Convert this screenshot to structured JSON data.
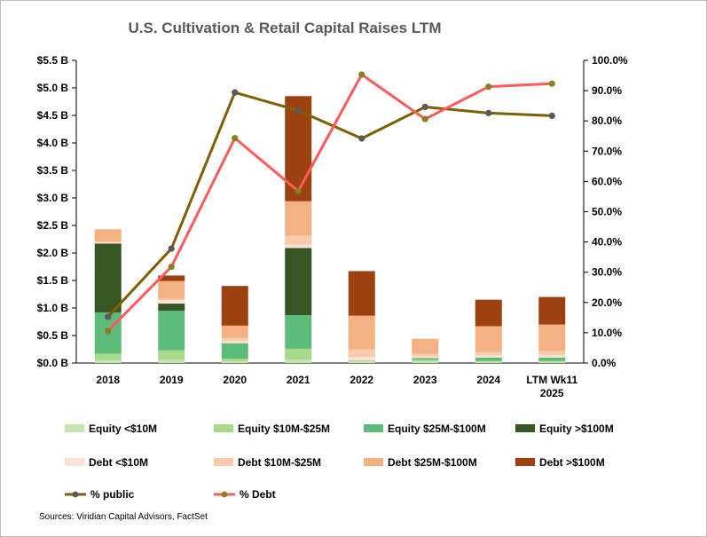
{
  "colors": {
    "eq_lt10": "#c6e5b3",
    "eq_10_25": "#a9d98b",
    "eq_25_100": "#5dbb79",
    "eq_gt100": "#375623",
    "debt_lt10": "#fbe2d5",
    "debt_10_25": "#f8cbad",
    "debt_25_100": "#f4b183",
    "debt_gt100": "#9c4110",
    "pct_public": "#7f6000",
    "pct_public_marker": "#595959",
    "pct_debt": "#ff5b5b",
    "pct_debt_marker": "#8a7f1e"
  },
  "chart_data": {
    "type": "bar",
    "title": "U.S. Cultivation & Retail Capital Raises LTM",
    "categories": [
      "2018",
      "2019",
      "2020",
      "2021",
      "2022",
      "2023",
      "2024",
      "LTM Wk11 2025"
    ],
    "category_lines": [
      [
        "2018"
      ],
      [
        "2019"
      ],
      [
        "2020"
      ],
      [
        "2021"
      ],
      [
        "2022"
      ],
      [
        "2023"
      ],
      [
        "2024"
      ],
      [
        "LTM Wk11",
        "2025"
      ]
    ],
    "y_left": {
      "min": 0,
      "max": 5.5,
      "step": 0.5,
      "ticks": [
        "$0.0 B",
        "$0.5 B",
        "$1.0 B",
        "$1.5 B",
        "$2.0 B",
        "$2.5 B",
        "$3.0 B",
        "$3.5 B",
        "$4.0 B",
        "$4.5 B",
        "$5.0 B",
        "$5.5 B"
      ]
    },
    "y_right": {
      "min": 0,
      "max": 100,
      "step": 10,
      "ticks": [
        "0.0%",
        "10.0%",
        "20.0%",
        "30.0%",
        "40.0%",
        "50.0%",
        "60.0%",
        "70.0%",
        "80.0%",
        "90.0%",
        "100.0%"
      ]
    },
    "grid": false,
    "legend_position": "bottom",
    "stacked_series": [
      {
        "name": "Equity <$10M",
        "color_key": "eq_lt10",
        "values": [
          0.05,
          0.06,
          0.03,
          0.06,
          0.03,
          0.03,
          0.02,
          0.02
        ]
      },
      {
        "name": "Equity $10M-$25M",
        "color_key": "eq_10_25",
        "values": [
          0.12,
          0.17,
          0.05,
          0.2,
          0.02,
          0.03,
          0.02,
          0.02
        ]
      },
      {
        "name": "Equity $25M-$100M",
        "color_key": "eq_25_100",
        "values": [
          0.75,
          0.72,
          0.28,
          0.61,
          0.0,
          0.03,
          0.06,
          0.06
        ]
      },
      {
        "name": "Equity >$100M",
        "color_key": "eq_gt100",
        "values": [
          1.25,
          0.13,
          0.0,
          1.22,
          0.0,
          0.0,
          0.0,
          0.0
        ]
      },
      {
        "name": "Debt <$10M",
        "color_key": "debt_lt10",
        "values": [
          0.03,
          0.06,
          0.04,
          0.06,
          0.06,
          0.03,
          0.04,
          0.04
        ]
      },
      {
        "name": "Debt $10M-$25M",
        "color_key": "debt_10_25",
        "values": [
          0.0,
          0.03,
          0.06,
          0.16,
          0.14,
          0.05,
          0.06,
          0.08
        ]
      },
      {
        "name": "Debt $25M-$100M",
        "color_key": "debt_25_100",
        "values": [
          0.23,
          0.32,
          0.22,
          0.63,
          0.61,
          0.27,
          0.47,
          0.48
        ]
      },
      {
        "name": "Debt >$100M",
        "color_key": "debt_gt100",
        "values": [
          0.0,
          0.1,
          0.72,
          1.91,
          0.81,
          0.0,
          0.48,
          0.5
        ]
      }
    ],
    "line_series": [
      {
        "name": "% public",
        "axis": "right",
        "color_key": "pct_public",
        "marker_key": "pct_public_marker",
        "values": [
          15.3,
          37.8,
          89.4,
          83.4,
          74.2,
          84.6,
          82.6,
          81.7
        ]
      },
      {
        "name": "% Debt",
        "axis": "right",
        "color_key": "pct_debt",
        "marker_key": "pct_debt_marker",
        "values": [
          10.6,
          31.8,
          74.3,
          56.8,
          95.3,
          80.6,
          91.3,
          92.3
        ]
      }
    ],
    "source": "Sources: Viridian Capital Advisors, FactSet"
  }
}
